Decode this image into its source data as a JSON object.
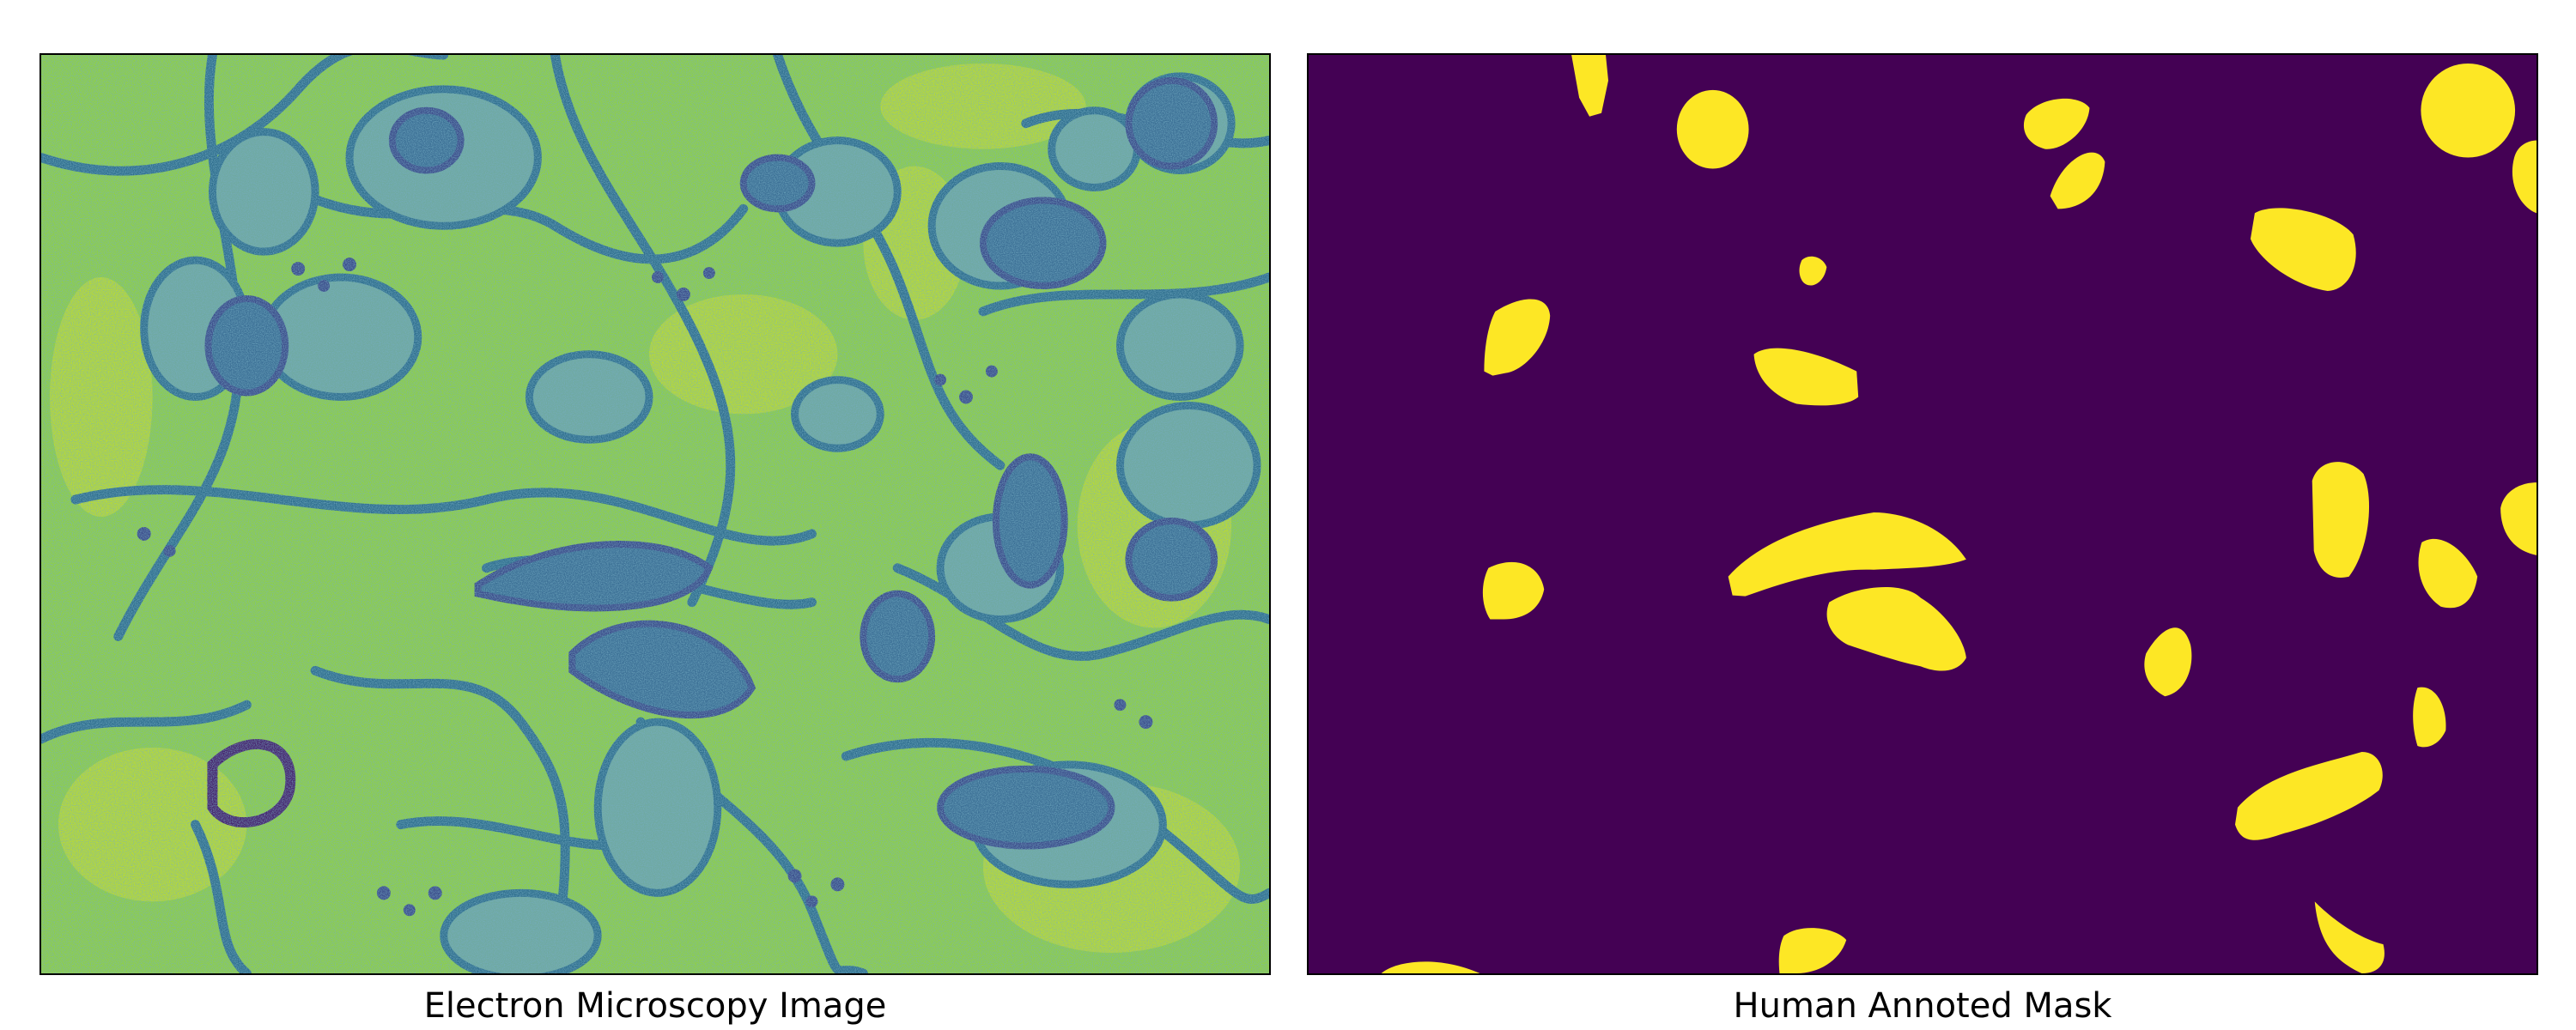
{
  "panels": {
    "em": {
      "caption": "Electron Microscopy Image",
      "colors": {
        "background": "#8fd044",
        "light": "#c9e02a",
        "membrane": "#2f6f8e",
        "dark": "#3b4b8a",
        "deep": "#46216b"
      }
    },
    "mask": {
      "caption": "Human Annoted Mask",
      "colors": {
        "background": "#440154",
        "foreground": "#fde725"
      }
    }
  }
}
